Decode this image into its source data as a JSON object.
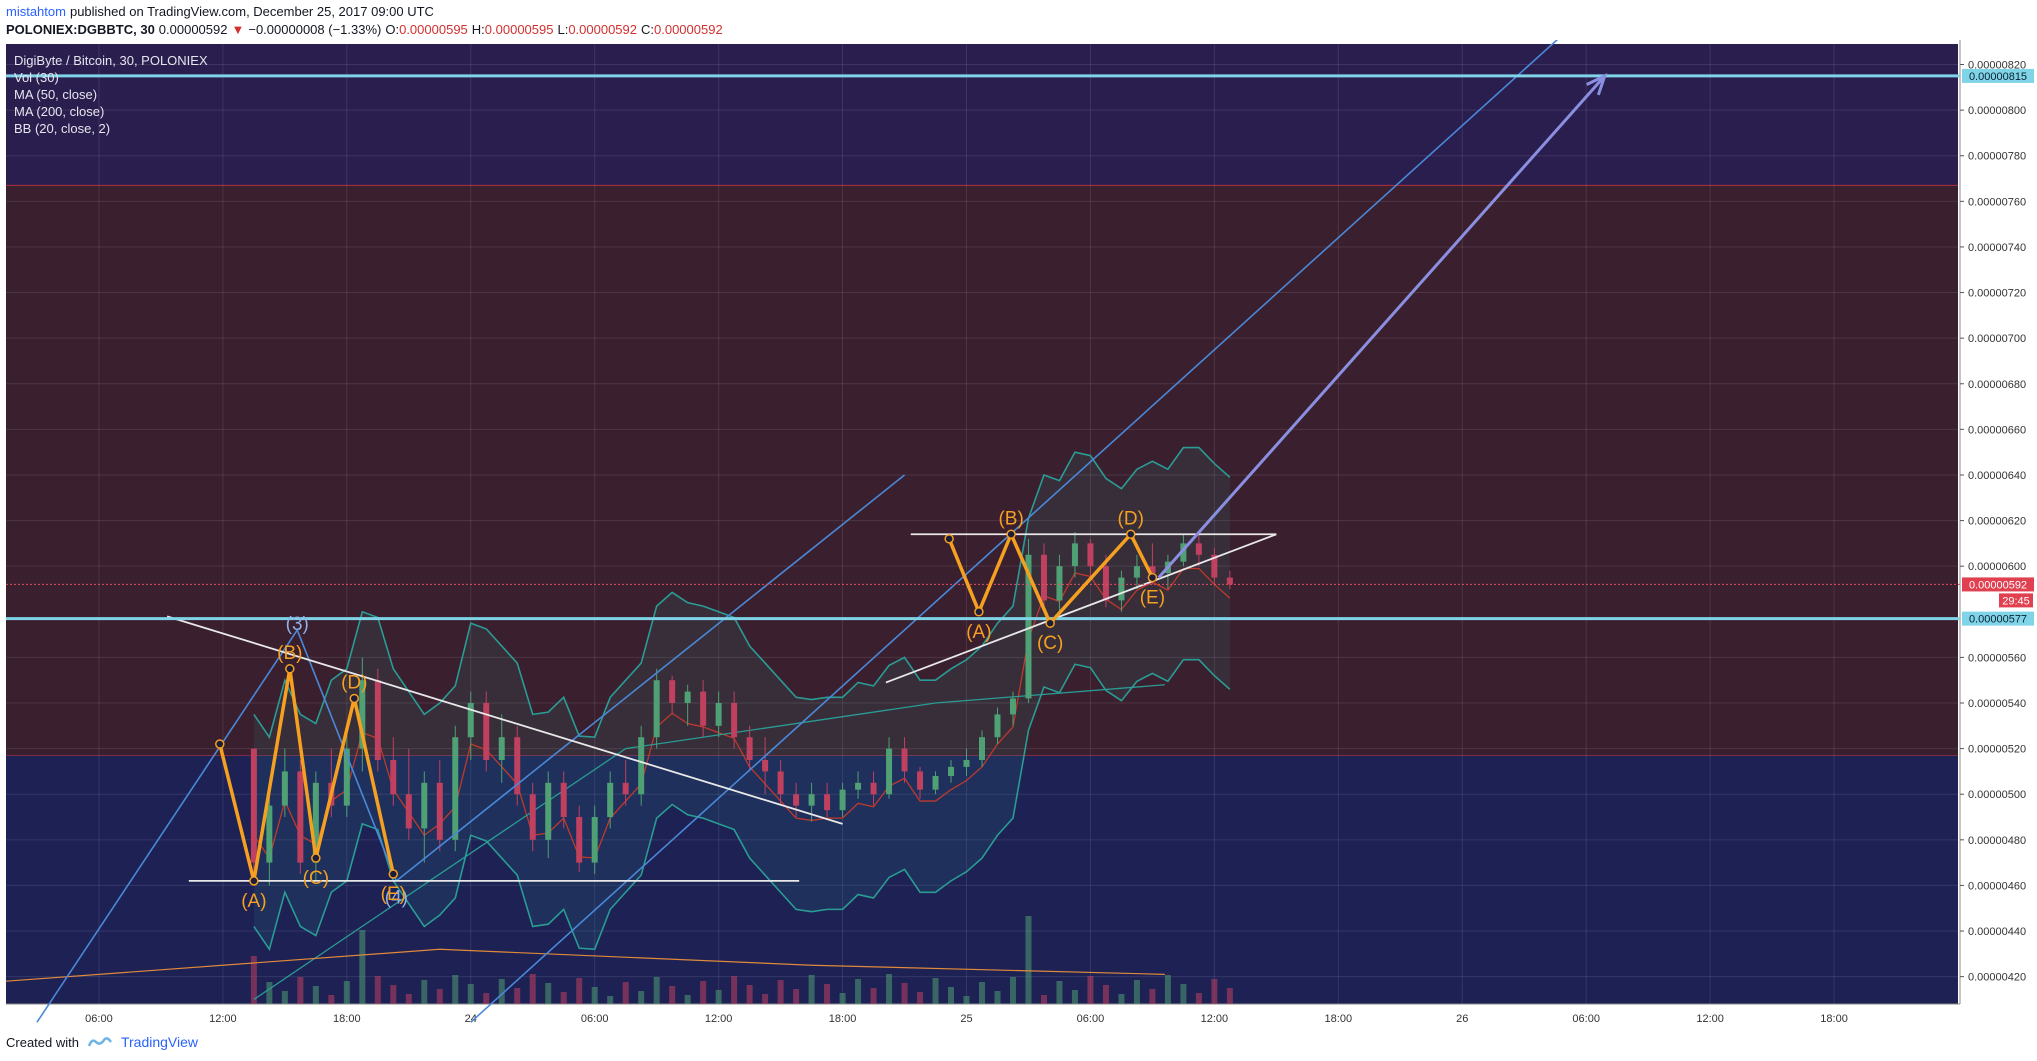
{
  "header": {
    "author": "mistahtom",
    "published_text": "published on TradingView.com, December 25, 2017 09:00 UTC",
    "symbol": "POLONIEX:DGBBTC, 30",
    "last_price": "0.00000592",
    "change_arrow": "▼",
    "change": "−0.00000008 (−1.33%)",
    "o_label": "O:",
    "o_value": "0.00000595",
    "h_label": "H:",
    "h_value": "0.00000595",
    "l_label": "L:",
    "l_value": "0.00000592",
    "c_label": "C:",
    "c_value": "0.00000592"
  },
  "legend": {
    "title": "DigiByte / Bitcoin, 30, POLONIEX",
    "vol": "Vol (30)",
    "ma50": "MA (50, close)",
    "ma200": "MA (200, close)",
    "bb": "BB (20, close, 2)"
  },
  "footer": {
    "created_with": "Created with",
    "brand": "TradingView"
  },
  "colors": {
    "bg_top": "#2a1e4e",
    "bg_mid": "#3a1f2e",
    "bg_bottom": "#1d2154",
    "candle_up": "#4fa074",
    "candle_down": "#c04060",
    "bb_line": "#2a9c94",
    "ma_red": "#c0392b",
    "ma_orange": "#e08a3c",
    "pattern": "#f5a020",
    "channel": "#4a88d8",
    "level_line": "#7fd4e8",
    "arrow": "#8a8fe0"
  },
  "chart_data": {
    "type": "candlestick",
    "y_axis_ticks": [
      "0.00000820",
      "0.00000800",
      "0.00000780",
      "0.00000760",
      "0.00000740",
      "0.00000720",
      "0.00000700",
      "0.00000680",
      "0.00000660",
      "0.00000640",
      "0.00000620",
      "0.00000600",
      "0.00000560",
      "0.00000540",
      "0.00000520",
      "0.00000500",
      "0.00000480",
      "0.00000460",
      "0.00000440",
      "0.00000420"
    ],
    "ylim": [
      4.08e-06,
      8.29e-06
    ],
    "x_axis_ticks": [
      {
        "label": "06:00",
        "t": 1.5
      },
      {
        "label": "12:00",
        "t": 3.5
      },
      {
        "label": "18:00",
        "t": 5.5
      },
      {
        "label": "24",
        "t": 7.5
      },
      {
        "label": "06:00",
        "t": 9.5
      },
      {
        "label": "12:00",
        "t": 11.5
      },
      {
        "label": "18:00",
        "t": 13.5
      },
      {
        "label": "25",
        "t": 15.5
      },
      {
        "label": "06:00",
        "t": 17.5
      },
      {
        "label": "12:00",
        "t": 19.5
      },
      {
        "label": "18:00",
        "t": 21.5
      },
      {
        "label": "26",
        "t": 23.5
      },
      {
        "label": "06:00",
        "t": 25.5
      },
      {
        "label": "12:00",
        "t": 27.5
      },
      {
        "label": "18:00",
        "t": 29.5
      }
    ],
    "xlim": [
      0,
      31.5
    ],
    "price_tags": [
      {
        "label": "0.00000815",
        "value": 8.15e-06
      },
      {
        "label": "0.00000592",
        "value": 5.92e-06
      },
      {
        "label": "29:45",
        "value": 5.85e-06
      },
      {
        "label": "0.00000577",
        "value": 5.77e-06
      }
    ],
    "zones": [
      {
        "from": 8.29e-06,
        "to": 7.67e-06,
        "color": "bg_top"
      },
      {
        "from": 7.67e-06,
        "to": 5.17e-06,
        "color": "bg_mid"
      },
      {
        "from": 5.17e-06,
        "to": 4.08e-06,
        "color": "bg_bottom"
      }
    ],
    "levels": [
      8.15e-06,
      5.77e-06
    ],
    "current_price": 5.92e-06,
    "candles_start_t": 4.0,
    "candles_step_t": 0.25,
    "candles": [
      [
        5.2,
        5.2,
        4.6,
        4.7
      ],
      [
        4.7,
        5.0,
        4.6,
        4.95
      ],
      [
        4.95,
        5.2,
        4.9,
        5.1
      ],
      [
        5.1,
        5.15,
        4.65,
        4.7
      ],
      [
        4.7,
        5.1,
        4.62,
        5.05
      ],
      [
        5.05,
        5.2,
        4.9,
        4.95
      ],
      [
        4.95,
        5.3,
        4.9,
        5.2
      ],
      [
        5.2,
        5.6,
        5.1,
        5.5
      ],
      [
        5.5,
        5.55,
        5.1,
        5.15
      ],
      [
        5.15,
        5.25,
        4.95,
        5.0
      ],
      [
        5.0,
        5.2,
        4.8,
        4.85
      ],
      [
        4.85,
        5.1,
        4.7,
        5.05
      ],
      [
        5.05,
        5.15,
        4.75,
        4.8
      ],
      [
        4.8,
        5.3,
        4.75,
        5.25
      ],
      [
        5.25,
        5.45,
        5.15,
        5.4
      ],
      [
        5.4,
        5.45,
        5.1,
        5.15
      ],
      [
        5.15,
        5.35,
        5.05,
        5.25
      ],
      [
        5.25,
        5.3,
        4.95,
        5.0
      ],
      [
        5.0,
        5.05,
        4.75,
        4.8
      ],
      [
        4.8,
        5.1,
        4.72,
        5.05
      ],
      [
        5.05,
        5.1,
        4.85,
        4.9
      ],
      [
        4.9,
        4.95,
        4.66,
        4.7
      ],
      [
        4.7,
        4.95,
        4.65,
        4.9
      ],
      [
        4.9,
        5.1,
        4.85,
        5.05
      ],
      [
        5.05,
        5.15,
        4.95,
        5.0
      ],
      [
        5.0,
        5.3,
        4.95,
        5.25
      ],
      [
        5.25,
        5.55,
        5.2,
        5.5
      ],
      [
        5.5,
        5.52,
        5.35,
        5.4
      ],
      [
        5.4,
        5.48,
        5.3,
        5.45
      ],
      [
        5.45,
        5.5,
        5.25,
        5.3
      ],
      [
        5.3,
        5.45,
        5.25,
        5.4
      ],
      [
        5.4,
        5.45,
        5.2,
        5.25
      ],
      [
        5.25,
        5.3,
        5.1,
        5.15
      ],
      [
        5.15,
        5.25,
        5.0,
        5.1
      ],
      [
        5.1,
        5.15,
        4.95,
        5.0
      ],
      [
        5.0,
        5.05,
        4.9,
        4.95
      ],
      [
        4.95,
        5.05,
        4.88,
        5.0
      ],
      [
        5.0,
        5.05,
        4.9,
        4.93
      ],
      [
        4.93,
        5.05,
        4.9,
        5.02
      ],
      [
        5.02,
        5.1,
        4.98,
        5.05
      ],
      [
        5.05,
        5.1,
        4.95,
        5.0
      ],
      [
        5.0,
        5.25,
        4.98,
        5.2
      ],
      [
        5.2,
        5.25,
        5.05,
        5.1
      ],
      [
        5.1,
        5.12,
        4.98,
        5.02
      ],
      [
        5.02,
        5.1,
        5.0,
        5.08
      ],
      [
        5.08,
        5.15,
        5.05,
        5.12
      ],
      [
        5.12,
        5.2,
        5.08,
        5.15
      ],
      [
        5.15,
        5.28,
        5.12,
        5.25
      ],
      [
        5.25,
        5.38,
        5.22,
        5.35
      ],
      [
        5.35,
        5.45,
        5.3,
        5.42
      ],
      [
        5.42,
        6.12,
        5.4,
        6.05
      ],
      [
        6.05,
        6.1,
        5.8,
        5.85
      ],
      [
        5.85,
        6.05,
        5.8,
        6.0
      ],
      [
        6.0,
        6.15,
        5.95,
        6.1
      ],
      [
        6.1,
        6.12,
        5.95,
        6.0
      ],
      [
        6.0,
        6.05,
        5.82,
        5.85
      ],
      [
        5.85,
        5.98,
        5.8,
        5.95
      ],
      [
        5.95,
        6.05,
        5.9,
        6.0
      ],
      [
        6.0,
        6.1,
        5.92,
        5.97
      ],
      [
        5.97,
        6.05,
        5.9,
        6.02
      ],
      [
        6.02,
        6.14,
        6.0,
        6.1
      ],
      [
        6.1,
        6.14,
        6.0,
        6.05
      ],
      [
        6.05,
        6.08,
        5.92,
        5.95
      ],
      [
        5.95,
        5.98,
        5.9,
        5.92
      ]
    ],
    "pattern_left": {
      "points": [
        [
          3.45,
          5.22
        ],
        [
          4.0,
          4.62
        ],
        [
          4.58,
          5.55
        ],
        [
          5.0,
          4.72
        ],
        [
          5.62,
          5.42
        ],
        [
          6.25,
          4.65
        ]
      ],
      "labels": [
        "(A)",
        "(B)",
        "(C)",
        "(D)",
        "(E)"
      ]
    },
    "pattern_right": {
      "points": [
        [
          15.22,
          6.12
        ],
        [
          15.7,
          5.8
        ],
        [
          16.22,
          6.14
        ],
        [
          16.85,
          5.75
        ],
        [
          18.15,
          6.14
        ],
        [
          18.5,
          5.95
        ]
      ],
      "labels": [
        "(A)",
        "(B)",
        "(C)",
        "(D)",
        "(E)"
      ]
    },
    "wave_labels": [
      {
        "label": "(3)",
        "t": 4.7,
        "v": 5.72
      },
      {
        "label": "(4)",
        "t": 6.3,
        "v": 4.52
      }
    ]
  }
}
